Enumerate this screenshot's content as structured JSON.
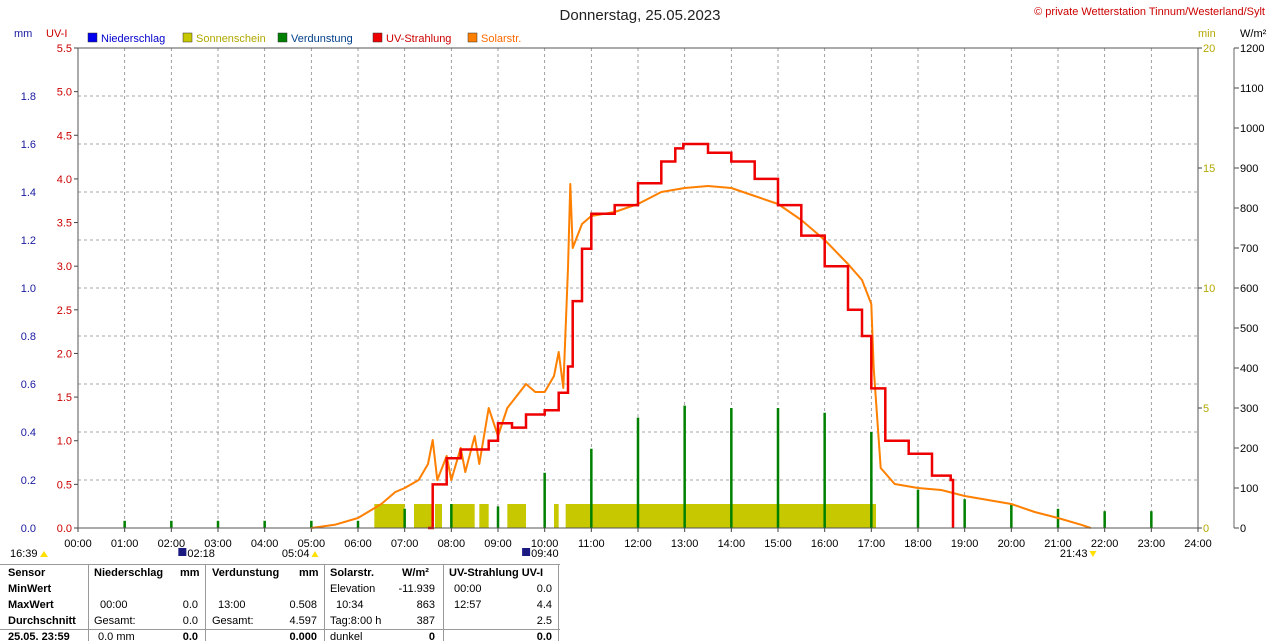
{
  "chart_data": {
    "type": "line",
    "title": "Donnerstag, 25.05.2023",
    "copyright": "© private Wetterstation Tinnum/Westerland/Sylt",
    "axes": {
      "mm": {
        "unit": "mm",
        "range": [
          0,
          2.0
        ],
        "ticks": [
          "0.0",
          "0.2",
          "0.4",
          "0.6",
          "0.8",
          "1.0",
          "1.2",
          "1.4",
          "1.6",
          "1.8"
        ],
        "color": "#1a1aa0"
      },
      "uvi": {
        "unit": "UV-I",
        "range": [
          0,
          5.5
        ],
        "ticks": [
          "0.0",
          "0.5",
          "1.0",
          "1.5",
          "2.0",
          "2.5",
          "3.0",
          "3.5",
          "4.0",
          "4.5",
          "5.0",
          "5.5"
        ],
        "color": "#cc0000"
      },
      "min": {
        "unit": "min",
        "range": [
          0,
          20
        ],
        "ticks": [
          "0",
          "5",
          "10",
          "15",
          "20"
        ],
        "color": "#b5a800"
      },
      "wm2": {
        "unit": "W/m²",
        "range": [
          0,
          1200
        ],
        "ticks": [
          "0",
          "100",
          "200",
          "300",
          "400",
          "500",
          "600",
          "700",
          "800",
          "900",
          "1000",
          "1100",
          "1200"
        ],
        "color": "#000000"
      }
    },
    "x_ticks": [
      "00:00",
      "01:00",
      "02:00",
      "03:00",
      "04:00",
      "05:00",
      "06:00",
      "07:00",
      "08:00",
      "09:00",
      "10:00",
      "11:00",
      "12:00",
      "13:00",
      "14:00",
      "15:00",
      "16:00",
      "17:00",
      "18:00",
      "19:00",
      "20:00",
      "21:00",
      "22:00",
      "23:00",
      "24:00"
    ],
    "grid": true,
    "legend": [
      {
        "name": "Niederschlag",
        "color": "#0000ee",
        "text_color": "#0000cc"
      },
      {
        "name": "Sonnenschein",
        "color": "#c8c800",
        "text_color": "#b0a800"
      },
      {
        "name": "Verdunstung",
        "color": "#008000",
        "text_color": "#003f8a"
      },
      {
        "name": "UV-Strahlung",
        "color": "#ee0000",
        "text_color": "#cc0000"
      },
      {
        "name": "Solarstr.",
        "color": "#ff8000",
        "text_color": "#ff6a00"
      }
    ],
    "events": {
      "moonset": "02:18",
      "sunrise": "05:04",
      "moonrise": "09:40",
      "sunset": "21:43",
      "prev_marker": "16:39"
    },
    "series": {
      "solar_wm2": [
        [
          5.0,
          0
        ],
        [
          5.5,
          8
        ],
        [
          6.0,
          25
        ],
        [
          6.5,
          60
        ],
        [
          6.8,
          90
        ],
        [
          7.0,
          100
        ],
        [
          7.3,
          120
        ],
        [
          7.5,
          160
        ],
        [
          7.6,
          220
        ],
        [
          7.7,
          120
        ],
        [
          7.9,
          180
        ],
        [
          8.0,
          120
        ],
        [
          8.2,
          200
        ],
        [
          8.3,
          140
        ],
        [
          8.5,
          230
        ],
        [
          8.6,
          160
        ],
        [
          8.8,
          300
        ],
        [
          9.0,
          230
        ],
        [
          9.2,
          300
        ],
        [
          9.4,
          330
        ],
        [
          9.6,
          360
        ],
        [
          9.8,
          340
        ],
        [
          10.0,
          340
        ],
        [
          10.2,
          380
        ],
        [
          10.3,
          440
        ],
        [
          10.4,
          350
        ],
        [
          10.5,
          650
        ],
        [
          10.55,
          860
        ],
        [
          10.6,
          700
        ],
        [
          10.8,
          760
        ],
        [
          11.0,
          780
        ],
        [
          11.5,
          790
        ],
        [
          12.0,
          810
        ],
        [
          12.5,
          840
        ],
        [
          13.0,
          850
        ],
        [
          13.5,
          855
        ],
        [
          14.0,
          850
        ],
        [
          14.5,
          830
        ],
        [
          15.0,
          810
        ],
        [
          15.5,
          770
        ],
        [
          16.0,
          720
        ],
        [
          16.5,
          660
        ],
        [
          16.8,
          620
        ],
        [
          17.0,
          560
        ],
        [
          17.05,
          400
        ],
        [
          17.2,
          150
        ],
        [
          17.5,
          110
        ],
        [
          18.0,
          100
        ],
        [
          18.5,
          95
        ],
        [
          19.0,
          80
        ],
        [
          19.5,
          70
        ],
        [
          20.0,
          60
        ],
        [
          20.5,
          40
        ],
        [
          21.0,
          25
        ],
        [
          21.5,
          8
        ],
        [
          21.7,
          0
        ]
      ],
      "uv_index": [
        [
          7.5,
          0
        ],
        [
          7.6,
          0.5
        ],
        [
          7.9,
          0.8
        ],
        [
          8.2,
          0.9
        ],
        [
          8.5,
          0.9
        ],
        [
          8.8,
          1.0
        ],
        [
          9.0,
          1.2
        ],
        [
          9.3,
          1.15
        ],
        [
          9.6,
          1.3
        ],
        [
          10.0,
          1.35
        ],
        [
          10.3,
          1.55
        ],
        [
          10.5,
          1.85
        ],
        [
          10.6,
          2.6
        ],
        [
          10.8,
          3.2
        ],
        [
          11.0,
          3.6
        ],
        [
          11.5,
          3.7
        ],
        [
          12.0,
          3.95
        ],
        [
          12.5,
          4.2
        ],
        [
          12.8,
          4.35
        ],
        [
          12.97,
          4.4
        ],
        [
          13.5,
          4.3
        ],
        [
          14.0,
          4.2
        ],
        [
          14.5,
          4.0
        ],
        [
          15.0,
          3.7
        ],
        [
          15.5,
          3.35
        ],
        [
          16.0,
          3.0
        ],
        [
          16.5,
          2.5
        ],
        [
          16.8,
          2.2
        ],
        [
          17.0,
          1.6
        ],
        [
          17.3,
          1.0
        ],
        [
          17.8,
          0.85
        ],
        [
          18.3,
          0.6
        ],
        [
          18.7,
          0.55
        ],
        [
          18.75,
          0
        ]
      ],
      "sunshine_min": [
        [
          6.35,
          7.0
        ],
        [
          7.2,
          7.6
        ],
        [
          7.65,
          7.8
        ],
        [
          8.0,
          8.5
        ],
        [
          8.6,
          8.8
        ],
        [
          9.2,
          9.6
        ],
        [
          10.2,
          10.3
        ],
        [
          10.45,
          17.1
        ]
      ],
      "sunshine_level": 1.0,
      "evaporation_mm": [
        [
          1,
          0.03
        ],
        [
          2,
          0.03
        ],
        [
          3,
          0.03
        ],
        [
          4,
          0.03
        ],
        [
          5,
          0.03
        ],
        [
          6,
          0.03
        ],
        [
          7,
          0.08
        ],
        [
          8,
          0.1
        ],
        [
          9,
          0.09
        ],
        [
          10,
          0.23
        ],
        [
          11,
          0.33
        ],
        [
          12,
          0.46
        ],
        [
          13,
          0.51
        ],
        [
          14,
          0.5
        ],
        [
          15,
          0.5
        ],
        [
          16,
          0.48
        ],
        [
          17,
          0.4
        ],
        [
          18,
          0.16
        ],
        [
          19,
          0.12
        ],
        [
          20,
          0.1
        ],
        [
          21,
          0.08
        ],
        [
          22,
          0.07
        ],
        [
          23,
          0.07
        ]
      ]
    },
    "stats": {
      "header": {
        "sensor": "Sensor",
        "precip": "Niederschlag",
        "precip_unit": "mm",
        "evap": "Verdunstung",
        "evap_unit": "mm",
        "solar": "Solarstr.",
        "solar_unit": "W/m²",
        "uv": "UV-Strahlung UV-I"
      },
      "minwert": {
        "label": "MinWert",
        "solar_label": "Elevation",
        "solar_value": "-11.939",
        "uv_time": "00:00",
        "uv_value": "0.0"
      },
      "maxwert": {
        "label": "MaxWert",
        "precip_time": "00:00",
        "precip_value": "0.0",
        "evap_time": "13:00",
        "evap_value": "0.508",
        "solar_time": "10:34",
        "solar_value": "863",
        "uv_time": "12:57",
        "uv_value": "4.4"
      },
      "durchschnitt": {
        "label": "Durchschnitt",
        "precip_label": "Gesamt:",
        "precip_value": "0.0",
        "evap_label": "Gesamt:",
        "evap_value": "4.597",
        "solar_label": "Tag:8:00 h",
        "solar_value": "387",
        "uv_value": "2.5"
      },
      "row4": {
        "label": "25.05. 23:59",
        "precip_sub": "0.0 mm",
        "precip_value": "0.0",
        "evap_value": "0.000",
        "solar_label": "dunkel",
        "solar_value": "0",
        "uv_value": "0.0"
      }
    }
  }
}
